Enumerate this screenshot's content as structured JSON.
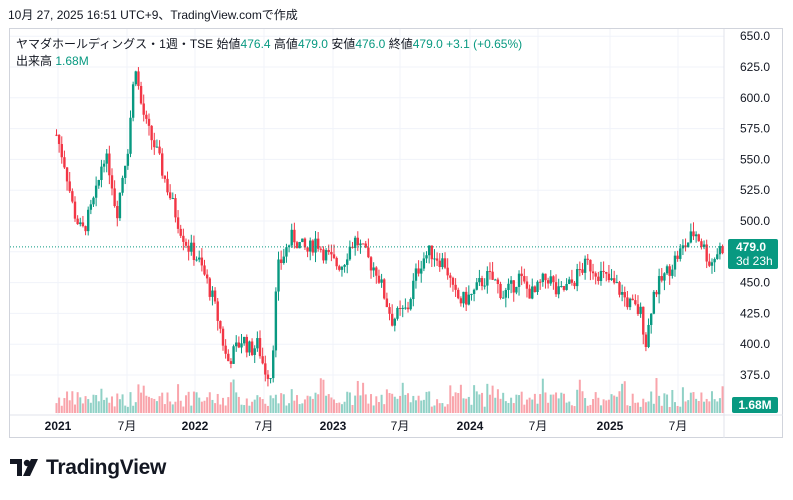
{
  "header": {
    "timestamp": "10月 27, 2025 16:51 UTC+9、TradingView.comで作成"
  },
  "legend": {
    "symbol": "ヤマダホールディングス・1週・TSE",
    "open_label": "始値",
    "open_value": "476.4",
    "high_label": "高値",
    "high_value": "479.0",
    "low_label": "安値",
    "low_value": "476.0",
    "close_label": "終値",
    "close_value": "479.0",
    "change": "+3.1 (+0.65%)",
    "volume_label": "出来高",
    "volume_value": "1.68M"
  },
  "price_tag": {
    "price": "479.0",
    "countdown": "3d 23h"
  },
  "volume_tag": "1.68M",
  "brand": {
    "name": "TradingView",
    "logo_icon": "tradingview-logo-icon"
  },
  "colors": {
    "up": "#089981",
    "down": "#F23645",
    "last_price_line": "#089981"
  },
  "chart_data": {
    "type": "candlestick",
    "interval": "weekly",
    "y_ticks": [
      "650.0",
      "625.0",
      "600.0",
      "575.0",
      "550.0",
      "525.0",
      "500.0",
      "475.0",
      "450.0",
      "425.0",
      "400.0",
      "375.0"
    ],
    "ylim": [
      362,
      655
    ],
    "x_ticks": [
      "2021",
      "7月",
      "2022",
      "7月",
      "2023",
      "7月",
      "2024",
      "7月",
      "2025",
      "7月"
    ],
    "last_price": 479.0,
    "grid": true,
    "close_series": [
      [
        "2020-12-28",
        570
      ],
      [
        "2021-01-20",
        545
      ],
      [
        "2021-02-10",
        510
      ],
      [
        "2021-03-05",
        490
      ],
      [
        "2021-03-25",
        505
      ],
      [
        "2021-04-15",
        525
      ],
      [
        "2021-05-01",
        555
      ],
      [
        "2021-05-20",
        540
      ],
      [
        "2021-06-05",
        505
      ],
      [
        "2021-06-25",
        545
      ],
      [
        "2021-07-05",
        560
      ],
      [
        "2021-07-25",
        630
      ],
      [
        "2021-08-05",
        600
      ],
      [
        "2021-08-25",
        575
      ],
      [
        "2021-09-15",
        560
      ],
      [
        "2021-10-10",
        535
      ],
      [
        "2021-10-30",
        515
      ],
      [
        "2021-11-20",
        495
      ],
      [
        "2021-12-10",
        480
      ],
      [
        "2022-01-05",
        470
      ],
      [
        "2022-01-25",
        455
      ],
      [
        "2022-02-12",
        440
      ],
      [
        "2022-03-05",
        415
      ],
      [
        "2022-03-25",
        385
      ],
      [
        "2022-04-15",
        395
      ],
      [
        "2022-05-05",
        405
      ],
      [
        "2022-05-25",
        395
      ],
      [
        "2022-06-15",
        400
      ],
      [
        "2022-07-01",
        380
      ],
      [
        "2022-07-20",
        375
      ],
      [
        "2022-08-05",
        460
      ],
      [
        "2022-08-25",
        475
      ],
      [
        "2022-09-15",
        488
      ],
      [
        "2022-10-05",
        480
      ],
      [
        "2022-10-25",
        475
      ],
      [
        "2022-11-15",
        485
      ],
      [
        "2022-12-05",
        475
      ],
      [
        "2023-01-05",
        465
      ],
      [
        "2023-01-25",
        465
      ],
      [
        "2023-02-10",
        478
      ],
      [
        "2023-03-01",
        485
      ],
      [
        "2023-03-20",
        475
      ],
      [
        "2023-04-10",
        465
      ],
      [
        "2023-04-25",
        460
      ],
      [
        "2023-05-15",
        440
      ],
      [
        "2023-06-05",
        420
      ],
      [
        "2023-06-25",
        425
      ],
      [
        "2023-07-15",
        428
      ],
      [
        "2023-08-05",
        455
      ],
      [
        "2023-08-25",
        470
      ],
      [
        "2023-09-15",
        475
      ],
      [
        "2023-10-05",
        470
      ],
      [
        "2023-10-25",
        465
      ],
      [
        "2023-11-15",
        440
      ],
      [
        "2023-12-05",
        435
      ],
      [
        "2024-01-05",
        440
      ],
      [
        "2024-01-25",
        450
      ],
      [
        "2024-02-15",
        455
      ],
      [
        "2024-03-05",
        450
      ],
      [
        "2024-03-25",
        440
      ],
      [
        "2024-04-15",
        445
      ],
      [
        "2024-05-05",
        455
      ],
      [
        "2024-05-25",
        445
      ],
      [
        "2024-06-15",
        440
      ],
      [
        "2024-07-05",
        450
      ],
      [
        "2024-07-25",
        455
      ],
      [
        "2024-08-15",
        440
      ],
      [
        "2024-09-05",
        445
      ],
      [
        "2024-09-25",
        450
      ],
      [
        "2024-10-15",
        460
      ],
      [
        "2024-11-05",
        465
      ],
      [
        "2024-11-25",
        460
      ],
      [
        "2024-12-15",
        455
      ],
      [
        "2025-01-05",
        450
      ],
      [
        "2025-01-25",
        445
      ],
      [
        "2025-02-15",
        435
      ],
      [
        "2025-03-05",
        430
      ],
      [
        "2025-03-25",
        425
      ],
      [
        "2025-04-08",
        400
      ],
      [
        "2025-04-25",
        440
      ],
      [
        "2025-05-15",
        450
      ],
      [
        "2025-06-05",
        460
      ],
      [
        "2025-06-25",
        470
      ],
      [
        "2025-07-15",
        478
      ],
      [
        "2025-08-01",
        485
      ],
      [
        "2025-08-15",
        492
      ],
      [
        "2025-09-05",
        480
      ],
      [
        "2025-09-25",
        465
      ],
      [
        "2025-10-15",
        476
      ],
      [
        "2025-10-27",
        479
      ]
    ]
  }
}
